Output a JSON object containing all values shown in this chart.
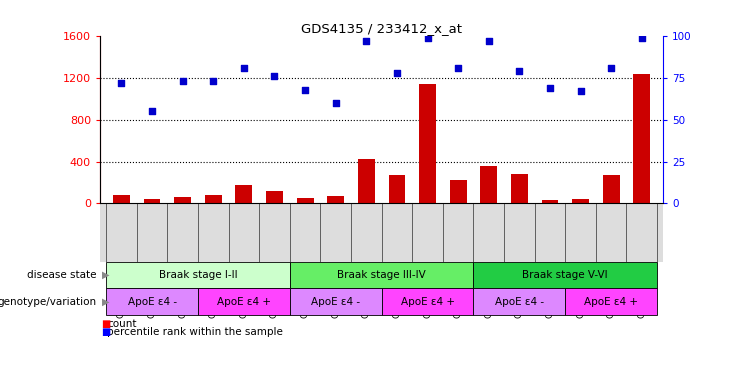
{
  "title": "GDS4135 / 233412_x_at",
  "samples": [
    "GSM735097",
    "GSM735098",
    "GSM735099",
    "GSM735094",
    "GSM735095",
    "GSM735096",
    "GSM735103",
    "GSM735104",
    "GSM735105",
    "GSM735100",
    "GSM735101",
    "GSM735102",
    "GSM735109",
    "GSM735110",
    "GSM735111",
    "GSM735106",
    "GSM735107",
    "GSM735108"
  ],
  "counts": [
    75,
    40,
    55,
    80,
    170,
    120,
    50,
    70,
    420,
    270,
    1140,
    220,
    360,
    280,
    30,
    40,
    270,
    1240
  ],
  "percentile_ranks": [
    72,
    55,
    73,
    73,
    81,
    76,
    68,
    60,
    97,
    78,
    99,
    81,
    97,
    79,
    69,
    67,
    81,
    99
  ],
  "bar_color": "#cc0000",
  "dot_color": "#0000cc",
  "ylim_left": [
    0,
    1600
  ],
  "ylim_right": [
    0,
    100
  ],
  "yticks_left": [
    0,
    400,
    800,
    1200,
    1600
  ],
  "yticks_right": [
    0,
    25,
    50,
    75,
    100
  ],
  "disease_state_groups": [
    {
      "label": "Braak stage I-II",
      "start": 0,
      "end": 6,
      "color": "#ccffcc"
    },
    {
      "label": "Braak stage III-IV",
      "start": 6,
      "end": 12,
      "color": "#66ee66"
    },
    {
      "label": "Braak stage V-VI",
      "start": 12,
      "end": 18,
      "color": "#22cc44"
    }
  ],
  "genotype_groups": [
    {
      "label": "ApoE ε4 -",
      "start": 0,
      "end": 3,
      "color": "#dd88ff"
    },
    {
      "label": "ApoE ε4 +",
      "start": 3,
      "end": 6,
      "color": "#ff44ff"
    },
    {
      "label": "ApoE ε4 -",
      "start": 6,
      "end": 9,
      "color": "#dd88ff"
    },
    {
      "label": "ApoE ε4 +",
      "start": 9,
      "end": 12,
      "color": "#ff44ff"
    },
    {
      "label": "ApoE ε4 -",
      "start": 12,
      "end": 15,
      "color": "#dd88ff"
    },
    {
      "label": "ApoE ε4 +",
      "start": 15,
      "end": 18,
      "color": "#ff44ff"
    }
  ],
  "legend_count_label": "count",
  "legend_pct_label": "percentile rank within the sample",
  "disease_state_label": "disease state",
  "genotype_label": "genotype/variation",
  "xticklabel_bg": "#dddddd",
  "background_color": "#ffffff"
}
